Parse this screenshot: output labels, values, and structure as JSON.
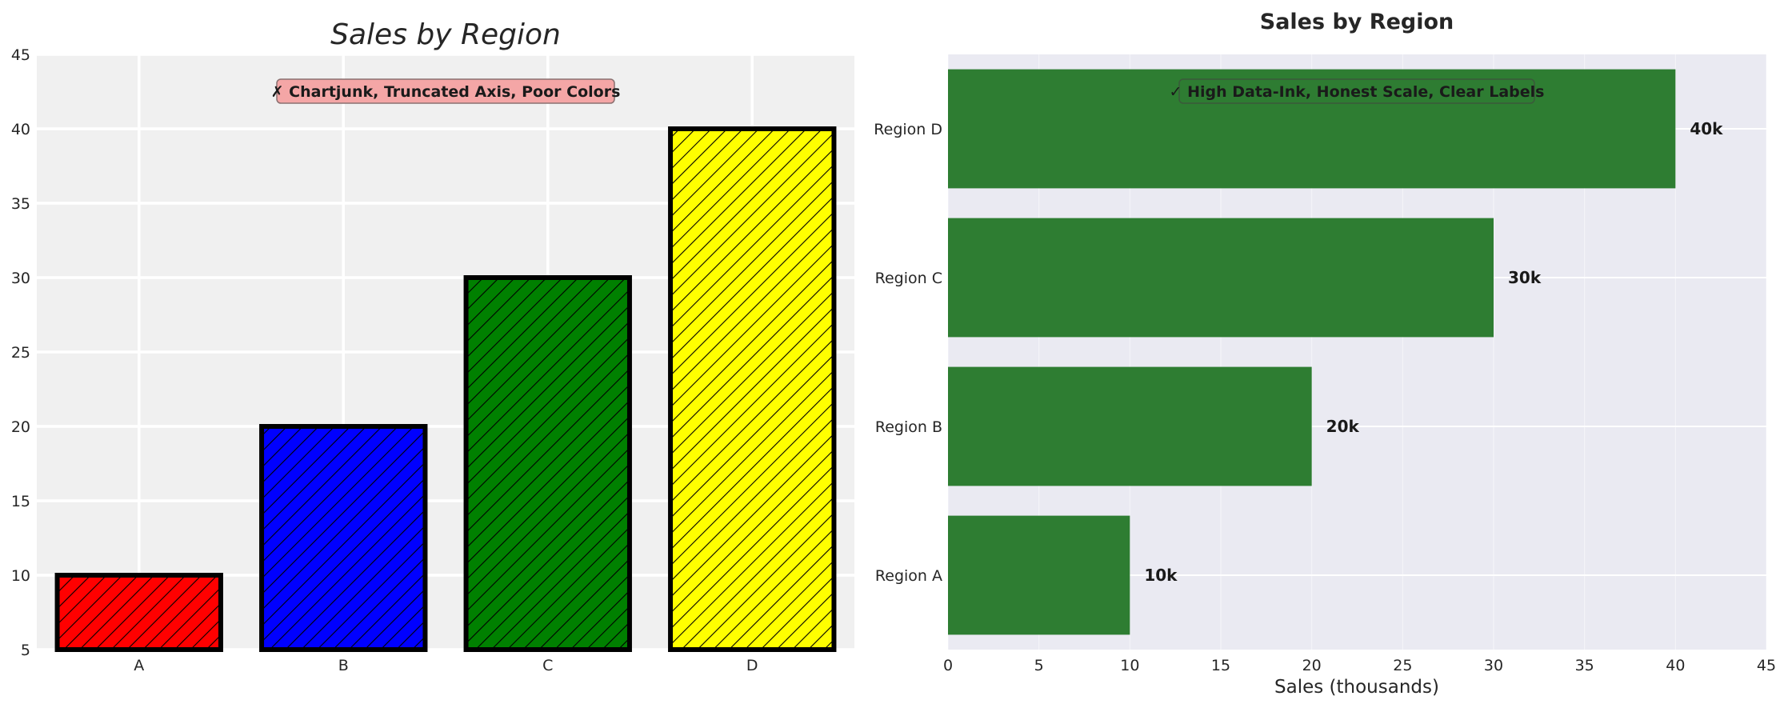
{
  "chart_data": [
    {
      "type": "bar",
      "title": "Sales by Region",
      "xlabel": "",
      "ylabel": "",
      "categories": [
        "A",
        "B",
        "C",
        "D"
      ],
      "values": [
        10,
        20,
        30,
        40
      ],
      "ylim": [
        5,
        45
      ],
      "yticks": [
        "5",
        "10",
        "15",
        "20",
        "25",
        "30",
        "35",
        "40",
        "45"
      ],
      "bar_colors": [
        "#ff0000",
        "#0000ff",
        "#008000",
        "#ffff00"
      ],
      "bar_hatch": "diagonal",
      "grid": true,
      "background": "#f0f0f0",
      "annotation": "✗ Chartjunk, Truncated Axis, Poor Colors",
      "annotation_bg": "#f4a6a6"
    },
    {
      "type": "bar",
      "orientation": "horizontal",
      "title": "Sales by Region",
      "xlabel": "Sales (thousands)",
      "ylabel": "",
      "categories": [
        "Region A",
        "Region B",
        "Region C",
        "Region D"
      ],
      "values": [
        10,
        20,
        30,
        40
      ],
      "data_labels": [
        "10k",
        "20k",
        "30k",
        "40k"
      ],
      "xlim": [
        0,
        45
      ],
      "xticks": [
        "0",
        "5",
        "10",
        "15",
        "20",
        "25",
        "30",
        "35",
        "40",
        "45"
      ],
      "bar_color": "#2e7d32",
      "grid": true,
      "background": "#eaeaf2",
      "annotation": "✓ High Data-Ink, Honest Scale, Clear Labels",
      "annotation_bg": "#2e7d32"
    }
  ]
}
